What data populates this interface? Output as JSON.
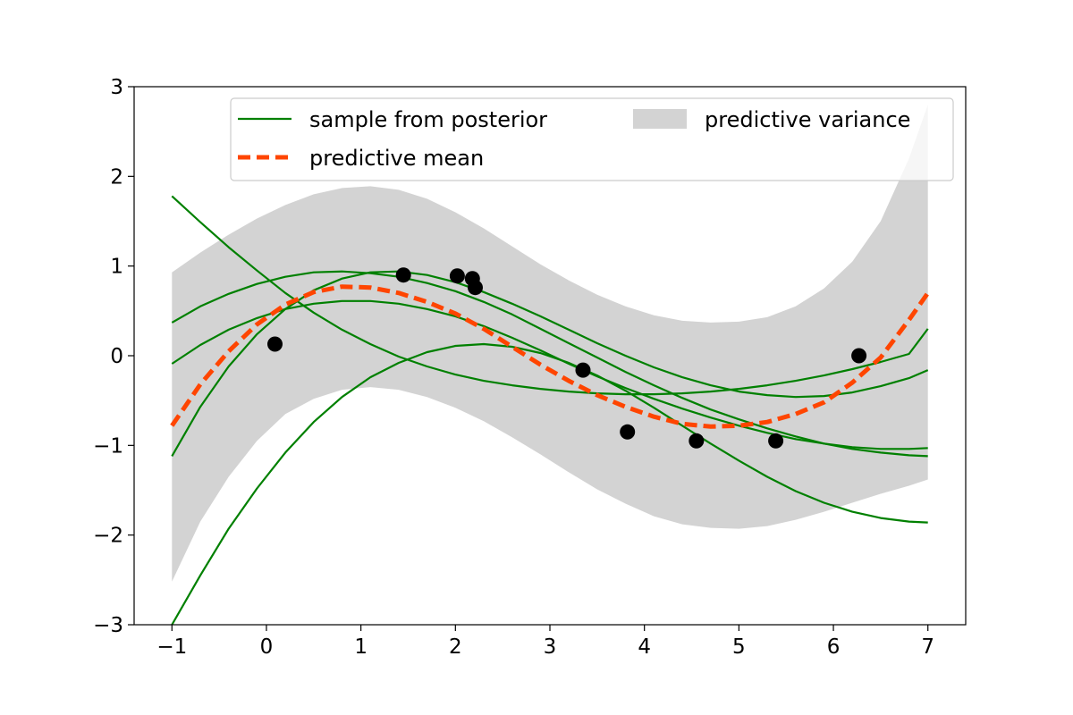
{
  "chart_data": {
    "type": "line",
    "title": "",
    "xlabel": "",
    "ylabel": "",
    "xlim": [
      -1.4,
      7.4
    ],
    "ylim": [
      -3,
      3
    ],
    "xticks": [
      -1,
      0,
      1,
      2,
      3,
      4,
      5,
      6,
      7
    ],
    "yticks": [
      -3,
      -2,
      -1,
      0,
      1,
      2,
      3
    ],
    "xtick_labels": [
      "−1",
      "0",
      "1",
      "2",
      "3",
      "4",
      "5",
      "6",
      "7"
    ],
    "ytick_labels": [
      "−3",
      "−2",
      "−1",
      "0",
      "1",
      "2",
      "3"
    ],
    "grid": false,
    "legend": {
      "position": "top-right",
      "entries": {
        "sample": "sample from posterior",
        "mean": "predictive mean",
        "variance": "predictive variance"
      }
    },
    "colors": {
      "sample": "#008000",
      "mean": "#ff4500",
      "variance": "#d3d3d3",
      "points": "#000000"
    },
    "x": [
      -1.0,
      -0.7,
      -0.4,
      -0.1,
      0.2,
      0.5,
      0.8,
      1.1,
      1.4,
      1.7,
      2.0,
      2.3,
      2.6,
      2.9,
      3.2,
      3.5,
      3.8,
      4.1,
      4.4,
      4.7,
      5.0,
      5.3,
      5.6,
      5.9,
      6.2,
      6.5,
      6.8,
      7.0
    ],
    "variance_upper": [
      0.93,
      1.15,
      1.35,
      1.53,
      1.68,
      1.8,
      1.87,
      1.89,
      1.85,
      1.75,
      1.6,
      1.42,
      1.22,
      1.02,
      0.84,
      0.68,
      0.55,
      0.45,
      0.39,
      0.37,
      0.38,
      0.43,
      0.55,
      0.75,
      1.05,
      1.5,
      2.2,
      2.8
    ],
    "variance_lower": [
      -2.52,
      -1.85,
      -1.35,
      -0.95,
      -0.65,
      -0.48,
      -0.38,
      -0.35,
      -0.38,
      -0.46,
      -0.58,
      -0.73,
      -0.91,
      -1.1,
      -1.3,
      -1.49,
      -1.65,
      -1.79,
      -1.88,
      -1.92,
      -1.93,
      -1.9,
      -1.83,
      -1.74,
      -1.64,
      -1.54,
      -1.45,
      -1.38
    ],
    "mean": [
      -0.78,
      -0.32,
      0.05,
      0.35,
      0.57,
      0.71,
      0.77,
      0.76,
      0.7,
      0.6,
      0.47,
      0.3,
      0.1,
      -0.1,
      -0.28,
      -0.44,
      -0.57,
      -0.68,
      -0.76,
      -0.79,
      -0.78,
      -0.74,
      -0.65,
      -0.52,
      -0.3,
      -0.02,
      0.4,
      0.7
    ],
    "series": [
      {
        "values": [
          -0.09,
          0.12,
          0.29,
          0.42,
          0.52,
          0.58,
          0.61,
          0.61,
          0.58,
          0.52,
          0.44,
          0.33,
          0.2,
          0.06,
          -0.09,
          -0.23,
          -0.36,
          -0.48,
          -0.59,
          -0.69,
          -0.78,
          -0.86,
          -0.93,
          -0.98,
          -1.02,
          -1.04,
          -1.04,
          -1.03
        ]
      },
      {
        "values": [
          0.37,
          0.55,
          0.69,
          0.8,
          0.88,
          0.93,
          0.94,
          0.92,
          0.88,
          0.81,
          0.72,
          0.6,
          0.46,
          0.3,
          0.14,
          -0.02,
          -0.18,
          -0.33,
          -0.47,
          -0.6,
          -0.71,
          -0.81,
          -0.9,
          -0.98,
          -1.04,
          -1.08,
          -1.11,
          -1.12
        ]
      },
      {
        "values": [
          -1.12,
          -0.57,
          -0.12,
          0.24,
          0.52,
          0.73,
          0.86,
          0.93,
          0.94,
          0.9,
          0.82,
          0.71,
          0.58,
          0.44,
          0.29,
          0.14,
          0.0,
          -0.13,
          -0.24,
          -0.33,
          -0.4,
          -0.44,
          -0.46,
          -0.45,
          -0.41,
          -0.34,
          -0.25,
          -0.16
        ]
      },
      {
        "values": [
          1.78,
          1.49,
          1.21,
          0.95,
          0.7,
          0.48,
          0.29,
          0.13,
          -0.01,
          -0.12,
          -0.21,
          -0.28,
          -0.33,
          -0.37,
          -0.4,
          -0.42,
          -0.43,
          -0.43,
          -0.42,
          -0.4,
          -0.37,
          -0.33,
          -0.28,
          -0.22,
          -0.15,
          -0.07,
          0.02,
          0.3
        ]
      },
      {
        "values": [
          -3.0,
          -2.45,
          -1.93,
          -1.48,
          -1.08,
          -0.74,
          -0.46,
          -0.24,
          -0.08,
          0.04,
          0.11,
          0.13,
          0.1,
          0.03,
          -0.08,
          -0.22,
          -0.39,
          -0.58,
          -0.78,
          -0.98,
          -1.17,
          -1.35,
          -1.51,
          -1.64,
          -1.74,
          -1.81,
          -1.85,
          -1.86
        ]
      }
    ],
    "points": [
      {
        "x": 0.09,
        "y": 0.13
      },
      {
        "x": 1.45,
        "y": 0.9
      },
      {
        "x": 2.02,
        "y": 0.89
      },
      {
        "x": 2.18,
        "y": 0.86
      },
      {
        "x": 2.21,
        "y": 0.76
      },
      {
        "x": 3.35,
        "y": -0.16
      },
      {
        "x": 3.82,
        "y": -0.85
      },
      {
        "x": 4.55,
        "y": -0.95
      },
      {
        "x": 5.39,
        "y": -0.95
      },
      {
        "x": 6.27,
        "y": 0.0
      }
    ]
  }
}
